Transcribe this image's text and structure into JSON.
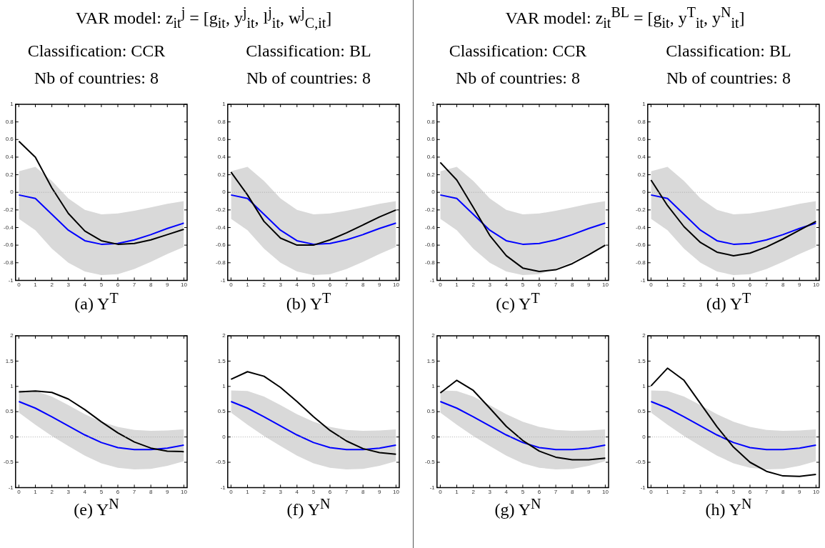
{
  "chart_data": [
    {
      "type": "line",
      "annotations": [
        "VAR model: z$_{it}$$^{j}$ = [g$_{it}$, y$^{j}$$_{it}$, l$^{j}$$_{it}$, w$^{j}$$_{C,it}$]"
      ],
      "title": "Classification: CCR",
      "subtitle": "Nb of countries: 8",
      "xlabel": "(a) Y$^{T}$",
      "x": [
        0,
        1,
        2,
        3,
        4,
        5,
        6,
        7,
        8,
        9,
        10
      ],
      "xlim": [
        -0.2,
        10.2
      ],
      "xticks": [
        0,
        1,
        2,
        3,
        4,
        5,
        6,
        7,
        8,
        9,
        10
      ],
      "ylim": [
        -1,
        1
      ],
      "yticks": [
        -1,
        -0.8,
        -0.6,
        -0.4,
        -0.2,
        0,
        0.2,
        0.4,
        0.6,
        0.8,
        1
      ],
      "ref_lines": [
        {
          "axis": "y",
          "value": 0,
          "color": "#aaaaaa",
          "line_style": "dotted"
        }
      ],
      "series": [
        {
          "color": "#0000ff",
          "values": [
            -0.03,
            -0.07,
            -0.25,
            -0.43,
            -0.55,
            -0.59,
            -0.58,
            -0.54,
            -0.48,
            -0.41,
            -0.35
          ],
          "lower": [
            -0.3,
            -0.43,
            -0.64,
            -0.8,
            -0.9,
            -0.94,
            -0.93,
            -0.87,
            -0.79,
            -0.7,
            -0.62
          ],
          "upper": [
            0.24,
            0.29,
            0.13,
            -0.07,
            -0.2,
            -0.25,
            -0.24,
            -0.21,
            -0.17,
            -0.13,
            -0.1
          ]
        },
        {
          "color": "#000000",
          "values": [
            0.58,
            0.4,
            0.05,
            -0.24,
            -0.44,
            -0.55,
            -0.59,
            -0.58,
            -0.54,
            -0.48,
            -0.42
          ]
        }
      ]
    },
    {
      "type": "line",
      "title": "Classification: BL",
      "subtitle": "Nb of countries: 8",
      "xlabel": "(b) Y$^{T}$",
      "x": [
        0,
        1,
        2,
        3,
        4,
        5,
        6,
        7,
        8,
        9,
        10
      ],
      "xlim": [
        -0.2,
        10.2
      ],
      "xticks": [
        0,
        1,
        2,
        3,
        4,
        5,
        6,
        7,
        8,
        9,
        10
      ],
      "ylim": [
        -1,
        1
      ],
      "yticks": [
        -1,
        -0.8,
        -0.6,
        -0.4,
        -0.2,
        0,
        0.2,
        0.4,
        0.6,
        0.8,
        1
      ],
      "ref_lines": [
        {
          "axis": "y",
          "value": 0,
          "color": "#aaaaaa",
          "line_style": "dotted"
        }
      ],
      "series": [
        {
          "color": "#0000ff",
          "values": [
            -0.03,
            -0.07,
            -0.25,
            -0.43,
            -0.55,
            -0.59,
            -0.58,
            -0.54,
            -0.48,
            -0.41,
            -0.35
          ],
          "lower": [
            -0.3,
            -0.43,
            -0.64,
            -0.8,
            -0.9,
            -0.94,
            -0.93,
            -0.87,
            -0.79,
            -0.7,
            -0.62
          ],
          "upper": [
            0.24,
            0.29,
            0.13,
            -0.07,
            -0.2,
            -0.25,
            -0.24,
            -0.21,
            -0.17,
            -0.13,
            -0.1
          ]
        },
        {
          "color": "#000000",
          "values": [
            0.23,
            -0.03,
            -0.33,
            -0.52,
            -0.6,
            -0.6,
            -0.54,
            -0.46,
            -0.37,
            -0.28,
            -0.2
          ]
        }
      ]
    },
    {
      "type": "line",
      "annotations": [
        "VAR model: z$_{it}$$^{BL}$ = [g$_{it}$, y$^{T}$$_{it}$, y$^{N}$$_{it}$]"
      ],
      "title": "Classification: CCR",
      "subtitle": "Nb of countries: 8",
      "xlabel": "(c) Y$^{T}$",
      "x": [
        0,
        1,
        2,
        3,
        4,
        5,
        6,
        7,
        8,
        9,
        10
      ],
      "xlim": [
        -0.2,
        10.2
      ],
      "xticks": [
        0,
        1,
        2,
        3,
        4,
        5,
        6,
        7,
        8,
        9,
        10
      ],
      "ylim": [
        -1,
        1
      ],
      "yticks": [
        -1,
        -0.8,
        -0.6,
        -0.4,
        -0.2,
        0,
        0.2,
        0.4,
        0.6,
        0.8,
        1
      ],
      "ref_lines": [
        {
          "axis": "y",
          "value": 0,
          "color": "#aaaaaa",
          "line_style": "dotted"
        }
      ],
      "series": [
        {
          "color": "#0000ff",
          "values": [
            -0.03,
            -0.07,
            -0.25,
            -0.43,
            -0.55,
            -0.59,
            -0.58,
            -0.54,
            -0.48,
            -0.41,
            -0.35
          ],
          "lower": [
            -0.3,
            -0.43,
            -0.64,
            -0.8,
            -0.9,
            -0.94,
            -0.93,
            -0.87,
            -0.79,
            -0.7,
            -0.62
          ],
          "upper": [
            0.24,
            0.29,
            0.13,
            -0.07,
            -0.2,
            -0.25,
            -0.24,
            -0.21,
            -0.17,
            -0.13,
            -0.1
          ]
        },
        {
          "color": "#000000",
          "values": [
            0.34,
            0.14,
            -0.17,
            -0.49,
            -0.72,
            -0.86,
            -0.9,
            -0.88,
            -0.81,
            -0.71,
            -0.6
          ]
        }
      ]
    },
    {
      "type": "line",
      "title": "Classification: BL",
      "subtitle": "Nb of countries: 8",
      "xlabel": "(d) Y$^{T}$",
      "x": [
        0,
        1,
        2,
        3,
        4,
        5,
        6,
        7,
        8,
        9,
        10
      ],
      "xlim": [
        -0.2,
        10.2
      ],
      "xticks": [
        0,
        1,
        2,
        3,
        4,
        5,
        6,
        7,
        8,
        9,
        10
      ],
      "ylim": [
        -1,
        1
      ],
      "yticks": [
        -1,
        -0.8,
        -0.6,
        -0.4,
        -0.2,
        0,
        0.2,
        0.4,
        0.6,
        0.8,
        1
      ],
      "ref_lines": [
        {
          "axis": "y",
          "value": 0,
          "color": "#aaaaaa",
          "line_style": "dotted"
        }
      ],
      "series": [
        {
          "color": "#0000ff",
          "values": [
            -0.03,
            -0.07,
            -0.25,
            -0.43,
            -0.55,
            -0.59,
            -0.58,
            -0.54,
            -0.48,
            -0.41,
            -0.35
          ],
          "lower": [
            -0.3,
            -0.43,
            -0.64,
            -0.8,
            -0.9,
            -0.94,
            -0.93,
            -0.87,
            -0.79,
            -0.7,
            -0.62
          ],
          "upper": [
            0.24,
            0.29,
            0.13,
            -0.07,
            -0.2,
            -0.25,
            -0.24,
            -0.21,
            -0.17,
            -0.13,
            -0.1
          ]
        },
        {
          "color": "#000000",
          "values": [
            0.14,
            -0.15,
            -0.39,
            -0.57,
            -0.68,
            -0.72,
            -0.69,
            -0.62,
            -0.53,
            -0.43,
            -0.33
          ]
        }
      ]
    },
    {
      "type": "line",
      "xlabel": "(e) Y$^{N}$",
      "x": [
        0,
        1,
        2,
        3,
        4,
        5,
        6,
        7,
        8,
        9,
        10
      ],
      "xlim": [
        -0.2,
        10.2
      ],
      "xticks": [
        0,
        1,
        2,
        3,
        4,
        5,
        6,
        7,
        8,
        9,
        10
      ],
      "ylim": [
        -1,
        2
      ],
      "yticks": [
        -1,
        -0.5,
        0,
        0.5,
        1,
        1.5,
        2
      ],
      "ref_lines": [
        {
          "axis": "y",
          "value": 0,
          "color": "#aaaaaa",
          "line_style": "dotted"
        }
      ],
      "series": [
        {
          "color": "#0000ff",
          "values": [
            0.7,
            0.57,
            0.4,
            0.22,
            0.04,
            -0.11,
            -0.21,
            -0.25,
            -0.25,
            -0.22,
            -0.16
          ],
          "lower": [
            0.48,
            0.24,
            0.02,
            -0.18,
            -0.37,
            -0.52,
            -0.61,
            -0.64,
            -0.63,
            -0.57,
            -0.48
          ],
          "upper": [
            0.92,
            0.91,
            0.8,
            0.63,
            0.45,
            0.3,
            0.2,
            0.14,
            0.12,
            0.13,
            0.15
          ]
        },
        {
          "color": "#000000",
          "values": [
            0.89,
            0.91,
            0.88,
            0.75,
            0.54,
            0.3,
            0.08,
            -0.1,
            -0.22,
            -0.28,
            -0.29
          ]
        }
      ]
    },
    {
      "type": "line",
      "xlabel": "(f) Y$^{N}$",
      "x": [
        0,
        1,
        2,
        3,
        4,
        5,
        6,
        7,
        8,
        9,
        10
      ],
      "xlim": [
        -0.2,
        10.2
      ],
      "xticks": [
        0,
        1,
        2,
        3,
        4,
        5,
        6,
        7,
        8,
        9,
        10
      ],
      "ylim": [
        -1,
        2
      ],
      "yticks": [
        -1,
        -0.5,
        0,
        0.5,
        1,
        1.5,
        2
      ],
      "ref_lines": [
        {
          "axis": "y",
          "value": 0,
          "color": "#aaaaaa",
          "line_style": "dotted"
        }
      ],
      "series": [
        {
          "color": "#0000ff",
          "values": [
            0.7,
            0.57,
            0.4,
            0.22,
            0.04,
            -0.11,
            -0.21,
            -0.25,
            -0.25,
            -0.22,
            -0.16
          ],
          "lower": [
            0.48,
            0.24,
            0.02,
            -0.18,
            -0.37,
            -0.52,
            -0.61,
            -0.64,
            -0.63,
            -0.57,
            -0.48
          ],
          "upper": [
            0.92,
            0.91,
            0.8,
            0.63,
            0.45,
            0.3,
            0.2,
            0.14,
            0.12,
            0.13,
            0.15
          ]
        },
        {
          "color": "#000000",
          "values": [
            1.14,
            1.29,
            1.2,
            0.98,
            0.7,
            0.4,
            0.13,
            -0.08,
            -0.23,
            -0.31,
            -0.34
          ]
        }
      ]
    },
    {
      "type": "line",
      "xlabel": "(g) Y$^{N}$",
      "x": [
        0,
        1,
        2,
        3,
        4,
        5,
        6,
        7,
        8,
        9,
        10
      ],
      "xlim": [
        -0.2,
        10.2
      ],
      "xticks": [
        0,
        1,
        2,
        3,
        4,
        5,
        6,
        7,
        8,
        9,
        10
      ],
      "ylim": [
        -1,
        2
      ],
      "yticks": [
        -1,
        -0.5,
        0,
        0.5,
        1,
        1.5,
        2
      ],
      "ref_lines": [
        {
          "axis": "y",
          "value": 0,
          "color": "#aaaaaa",
          "line_style": "dotted"
        }
      ],
      "series": [
        {
          "color": "#0000ff",
          "values": [
            0.7,
            0.57,
            0.4,
            0.22,
            0.04,
            -0.11,
            -0.21,
            -0.25,
            -0.25,
            -0.22,
            -0.16
          ],
          "lower": [
            0.48,
            0.24,
            0.02,
            -0.18,
            -0.37,
            -0.52,
            -0.61,
            -0.64,
            -0.63,
            -0.57,
            -0.48
          ],
          "upper": [
            0.92,
            0.91,
            0.8,
            0.63,
            0.45,
            0.3,
            0.2,
            0.14,
            0.12,
            0.13,
            0.15
          ]
        },
        {
          "color": "#000000",
          "values": [
            0.87,
            1.12,
            0.92,
            0.57,
            0.21,
            -0.07,
            -0.28,
            -0.4,
            -0.45,
            -0.45,
            -0.42
          ]
        }
      ]
    },
    {
      "type": "line",
      "xlabel": "(h) Y$^{N}$",
      "x": [
        0,
        1,
        2,
        3,
        4,
        5,
        6,
        7,
        8,
        9,
        10
      ],
      "xlim": [
        -0.2,
        10.2
      ],
      "xticks": [
        0,
        1,
        2,
        3,
        4,
        5,
        6,
        7,
        8,
        9,
        10
      ],
      "ylim": [
        -1,
        2
      ],
      "yticks": [
        -1,
        -0.5,
        0,
        0.5,
        1,
        1.5,
        2
      ],
      "ref_lines": [
        {
          "axis": "y",
          "value": 0,
          "color": "#aaaaaa",
          "line_style": "dotted"
        }
      ],
      "series": [
        {
          "color": "#0000ff",
          "values": [
            0.7,
            0.57,
            0.4,
            0.22,
            0.04,
            -0.11,
            -0.21,
            -0.25,
            -0.25,
            -0.22,
            -0.16
          ],
          "lower": [
            0.48,
            0.24,
            0.02,
            -0.18,
            -0.37,
            -0.52,
            -0.61,
            -0.64,
            -0.63,
            -0.57,
            -0.48
          ],
          "upper": [
            0.92,
            0.91,
            0.8,
            0.63,
            0.45,
            0.3,
            0.2,
            0.14,
            0.12,
            0.13,
            0.15
          ]
        },
        {
          "color": "#000000",
          "values": [
            1.01,
            1.36,
            1.12,
            0.66,
            0.2,
            -0.2,
            -0.5,
            -0.68,
            -0.77,
            -0.78,
            -0.74
          ]
        }
      ]
    }
  ]
}
